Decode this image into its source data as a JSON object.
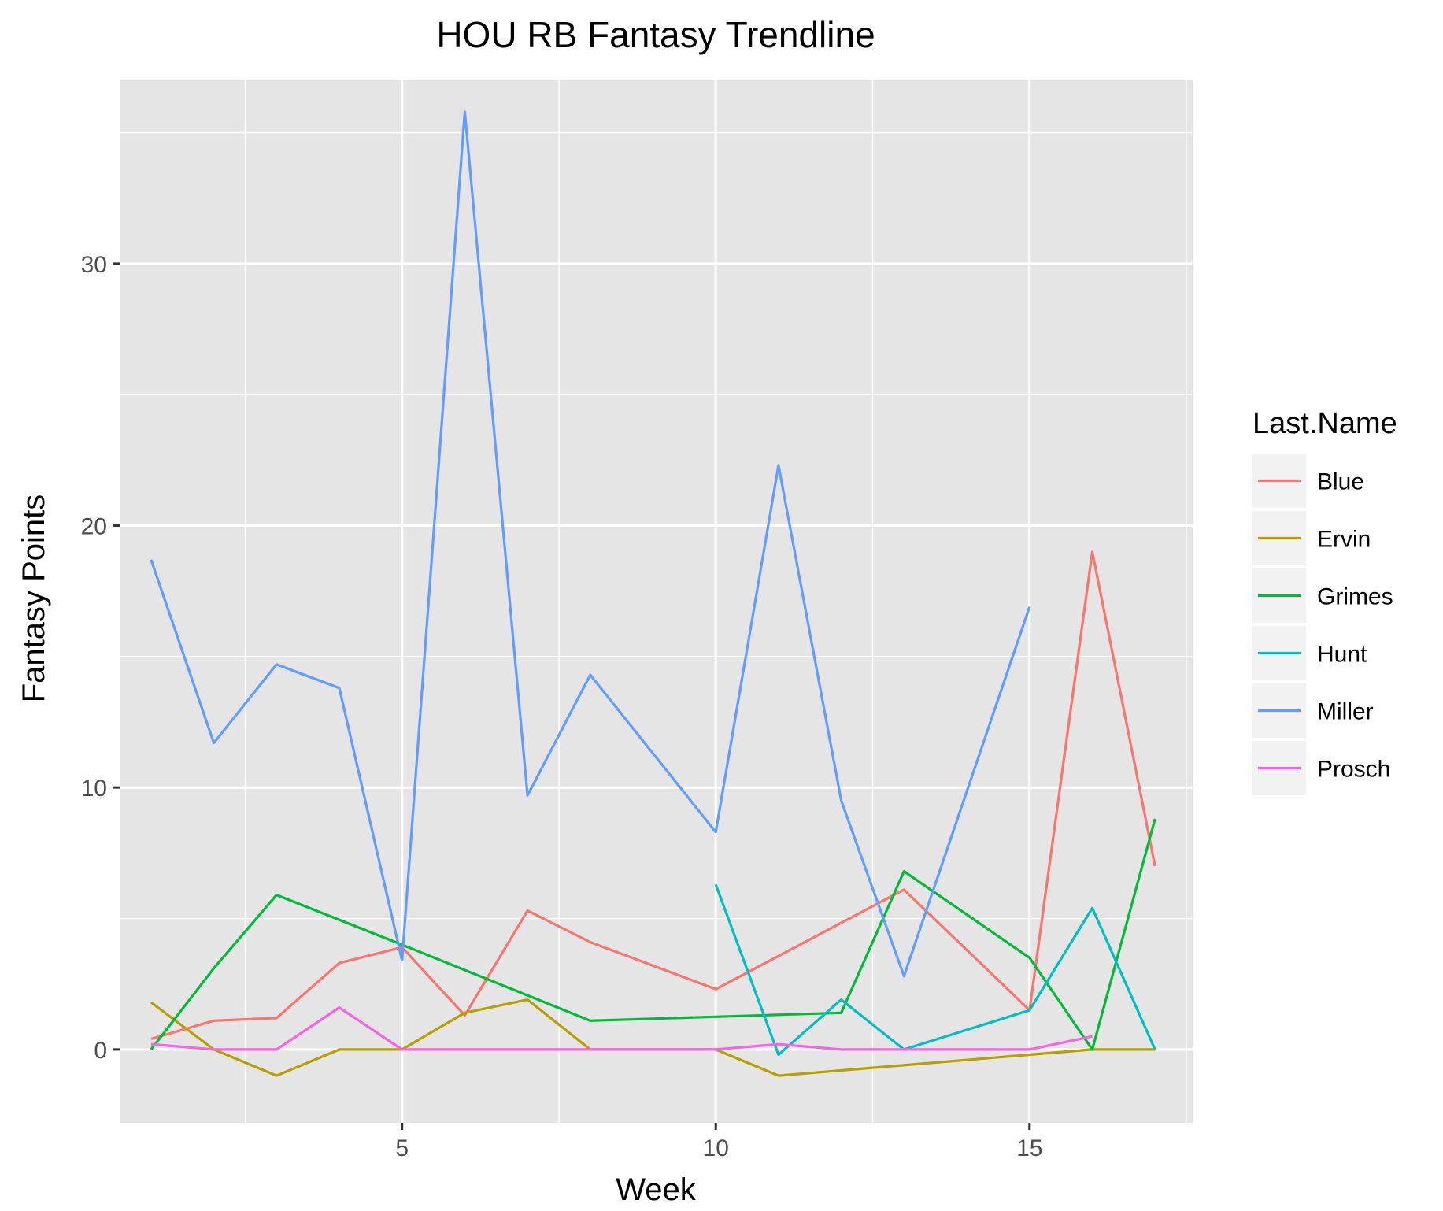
{
  "chart_data": {
    "type": "line",
    "title": "HOU RB Fantasy Trendline",
    "xlabel": "Week",
    "ylabel": "Fantasy Points",
    "xlim": [
      0.5,
      17.6
    ],
    "ylim": [
      -2.8,
      37.0
    ],
    "x_ticks": [
      5,
      10,
      15
    ],
    "x_minor_ticks": [
      2.5,
      7.5,
      12.5,
      17.5
    ],
    "y_ticks": [
      0,
      10,
      20,
      30
    ],
    "y_minor_ticks": [
      5,
      15,
      25,
      35
    ],
    "grid": true,
    "legend": {
      "title": "Last.Name",
      "position": "right"
    },
    "series": [
      {
        "name": "Blue",
        "color": "#F8766D",
        "points": [
          [
            1,
            0.4
          ],
          [
            2,
            1.1
          ],
          [
            3,
            1.2
          ],
          [
            4,
            3.3
          ],
          [
            5,
            3.9
          ],
          [
            6,
            1.3
          ],
          [
            7,
            5.3
          ],
          [
            8,
            4.1
          ],
          [
            10,
            2.3
          ],
          [
            13,
            6.1
          ],
          [
            15,
            1.5
          ],
          [
            16,
            19.0
          ],
          [
            17,
            7.0
          ]
        ]
      },
      {
        "name": "Ervin",
        "color": "#B79F00",
        "points": [
          [
            1,
            1.8
          ],
          [
            2,
            0.0
          ],
          [
            3,
            -1.0
          ],
          [
            4,
            0.0
          ],
          [
            5,
            0.0
          ],
          [
            6,
            1.4
          ],
          [
            7,
            1.9
          ],
          [
            8,
            0.0
          ],
          [
            10,
            0.0
          ],
          [
            11,
            -1.0
          ],
          [
            15,
            -0.2
          ],
          [
            16,
            0.0
          ],
          [
            17,
            0.0
          ]
        ]
      },
      {
        "name": "Grimes",
        "color": "#00BA38",
        "points": [
          [
            1,
            0.0
          ],
          [
            2,
            3.1
          ],
          [
            3,
            5.9
          ],
          [
            5,
            4.0
          ],
          [
            8,
            1.1
          ],
          [
            12,
            1.4
          ],
          [
            13,
            6.8
          ],
          [
            15,
            3.5
          ],
          [
            16,
            0.0
          ],
          [
            17,
            8.8
          ]
        ]
      },
      {
        "name": "Hunt",
        "color": "#00BFC4",
        "points": [
          [
            10,
            6.3
          ],
          [
            11,
            -0.2
          ],
          [
            12,
            1.9
          ],
          [
            13,
            0.0
          ],
          [
            15,
            1.5
          ],
          [
            16,
            5.4
          ],
          [
            17,
            0.0
          ]
        ]
      },
      {
        "name": "Miller",
        "color": "#619CFF",
        "points": [
          [
            1,
            18.7
          ],
          [
            2,
            11.7
          ],
          [
            3,
            14.7
          ],
          [
            4,
            13.8
          ],
          [
            5,
            3.4
          ],
          [
            6,
            35.8
          ],
          [
            7,
            9.7
          ],
          [
            8,
            14.3
          ],
          [
            10,
            8.3
          ],
          [
            11,
            22.3
          ],
          [
            12,
            9.5
          ],
          [
            13,
            2.8
          ],
          [
            15,
            16.9
          ]
        ]
      },
      {
        "name": "Prosch",
        "color": "#F564E3",
        "points": [
          [
            1,
            0.2
          ],
          [
            2,
            0.0
          ],
          [
            3,
            0.0
          ],
          [
            4,
            1.6
          ],
          [
            5,
            0.0
          ],
          [
            6,
            0.0
          ],
          [
            7,
            0.0
          ],
          [
            8,
            0.0
          ],
          [
            10,
            0.0
          ],
          [
            11,
            0.2
          ],
          [
            12,
            0.0
          ],
          [
            13,
            0.0
          ],
          [
            15,
            0.0
          ],
          [
            16,
            0.5
          ]
        ]
      }
    ]
  }
}
